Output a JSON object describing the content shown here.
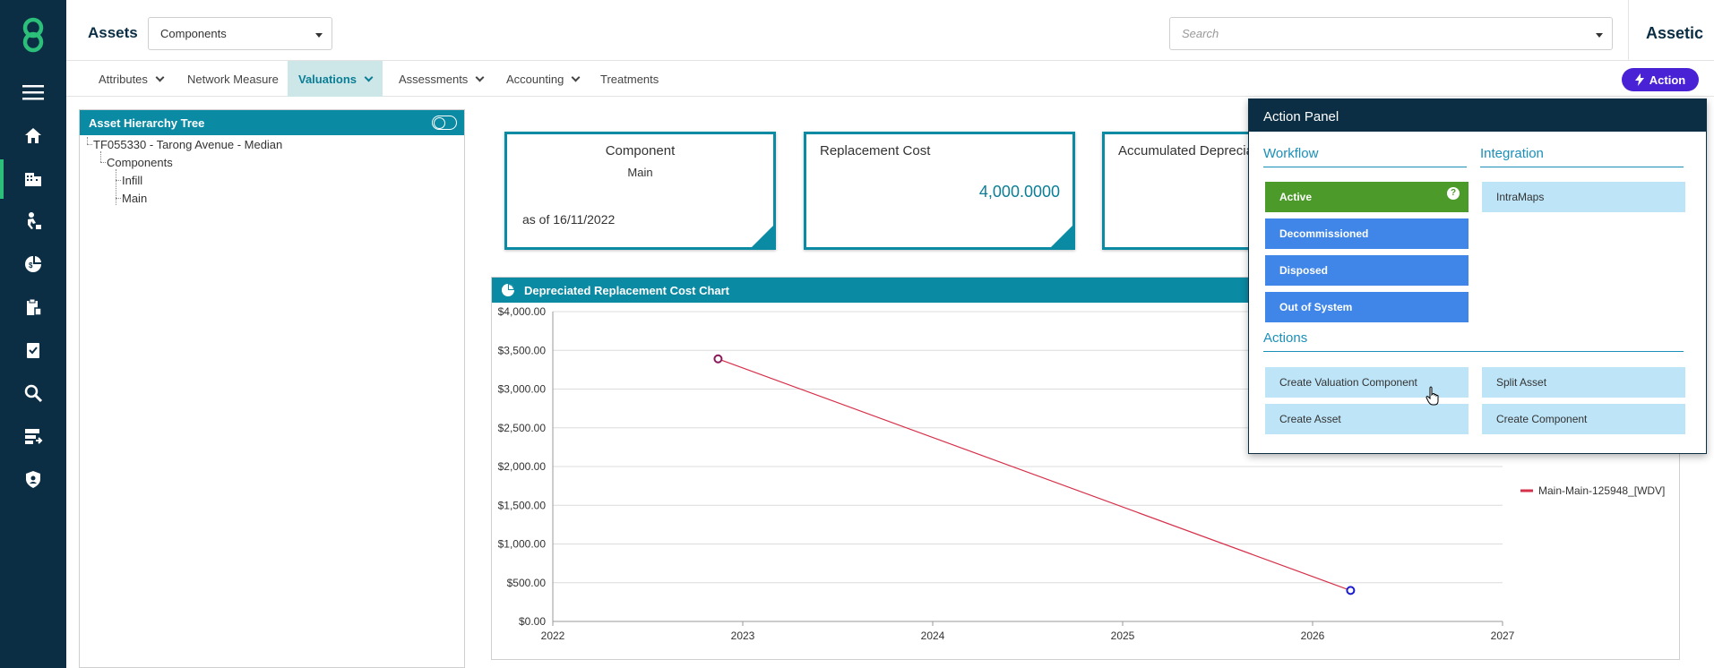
{
  "header": {
    "section_title": "Assets",
    "module_select": "Components",
    "search_placeholder": "Search",
    "brand": "Assetic"
  },
  "subnav": {
    "tabs": [
      {
        "label": "Attributes"
      },
      {
        "label": "Network Measure"
      },
      {
        "label": "Valuations"
      },
      {
        "label": "Assessments"
      },
      {
        "label": "Accounting"
      },
      {
        "label": "Treatments"
      }
    ],
    "action_label": "Action"
  },
  "tree": {
    "title": "Asset Hierarchy Tree",
    "nodes": [
      "TF055330 - Tarong Avenue - Median",
      "Components",
      "Infill",
      "Main"
    ]
  },
  "cards": {
    "component": {
      "title": "Component",
      "subtitle": "Main",
      "date": "as of 16/11/2022"
    },
    "replacement": {
      "title": "Replacement Cost",
      "value": "4,000.0000"
    },
    "accumulated": {
      "title": "Accumulated Depreciation"
    }
  },
  "chart": {
    "title": "Depreciated Replacement Cost Chart"
  },
  "chart_data": {
    "type": "line",
    "title": "Depreciated Replacement Cost Chart",
    "xlabel": "",
    "ylabel": "",
    "x": [
      2022.87,
      2026.2
    ],
    "series": [
      {
        "name": "Main-Main-125948_[WDV]",
        "values": [
          3390,
          400
        ]
      }
    ],
    "xlim": [
      2022,
      2027
    ],
    "ylim": [
      0,
      4000
    ],
    "x_ticks": [
      "2022",
      "2023",
      "2024",
      "2025",
      "2026",
      "2027"
    ],
    "y_ticks": [
      "$0.00",
      "$500.00",
      "$1,000.00",
      "$1,500.00",
      "$2,000.00",
      "$2,500.00",
      "$3,000.00",
      "$3,500.00",
      "$4,000.00"
    ],
    "grid": true,
    "legend": "right",
    "line_color": "#d6304a"
  },
  "action_panel": {
    "title": "Action Panel",
    "workflow_label": "Workflow",
    "integration_label": "Integration",
    "actions_label": "Actions",
    "workflow_buttons": [
      "Active",
      "Decommissioned",
      "Disposed",
      "Out of System"
    ],
    "integration_buttons": [
      "IntraMaps"
    ],
    "action_buttons": [
      "Create Valuation Component",
      "Split Asset",
      "Create Asset",
      "Create Component"
    ],
    "help_glyph": "?"
  },
  "icons": {
    "nav": [
      "menu-icon",
      "home-icon",
      "building-icon",
      "worker-icon",
      "finance-icon",
      "clipboard-icon",
      "checklist-icon",
      "search-icon",
      "work-order-icon",
      "shield-icon"
    ]
  }
}
